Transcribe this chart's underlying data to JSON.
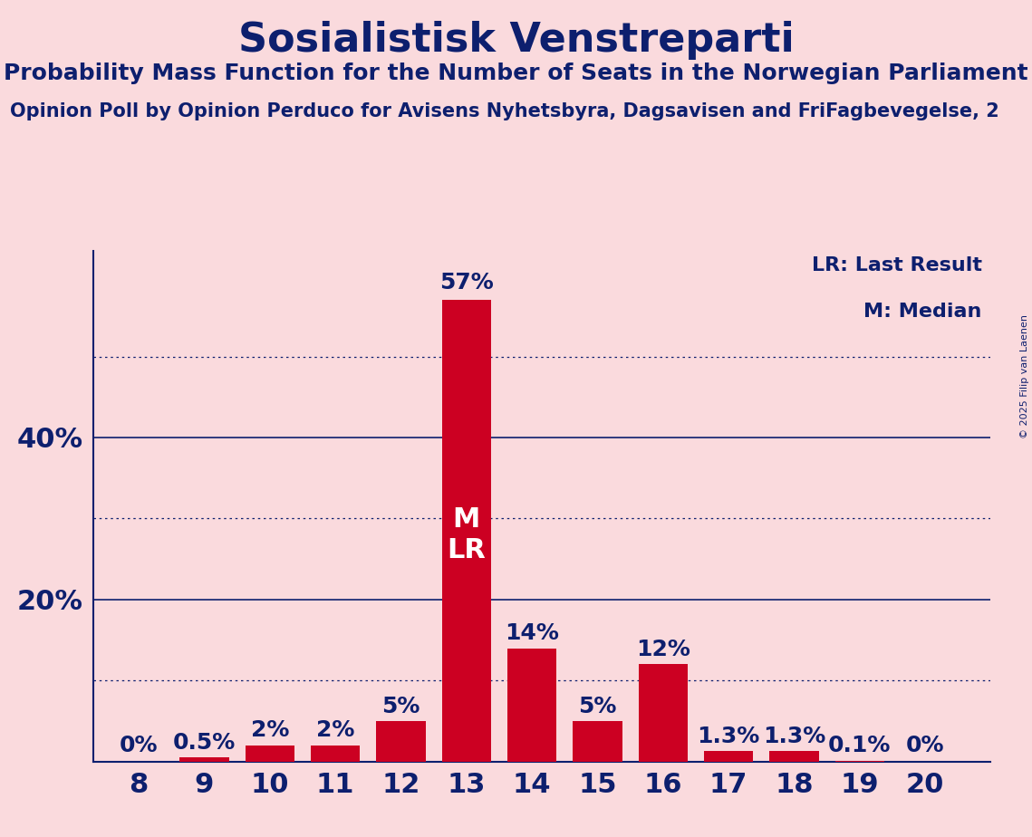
{
  "title": "Sosialistisk Venstreparti",
  "subtitle": "Probability Mass Function for the Number of Seats in the Norwegian Parliament",
  "source": "Opinion Poll by Opinion Perduco for Avisens Nyhetsbyra, Dagsavisen and FriFagbevegelse, 2",
  "copyright": "© 2025 Filip van Laenen",
  "seats": [
    8,
    9,
    10,
    11,
    12,
    13,
    14,
    15,
    16,
    17,
    18,
    19,
    20
  ],
  "probabilities": [
    0.0,
    0.5,
    2.0,
    2.0,
    5.0,
    57.0,
    14.0,
    5.0,
    12.0,
    1.3,
    1.3,
    0.1,
    0.0
  ],
  "labels": [
    "0%",
    "0.5%",
    "2%",
    "2%",
    "5%",
    "57%",
    "14%",
    "5%",
    "12%",
    "1.3%",
    "1.3%",
    "0.1%",
    "0%"
  ],
  "median_seat": 13,
  "last_result_seat": 13,
  "bar_color": "#CC0022",
  "background_color": "#FADADD",
  "text_color": "#0D1F6E",
  "title_fontsize": 32,
  "subtitle_fontsize": 18,
  "source_fontsize": 15,
  "dotted_lines": [
    10,
    30,
    50
  ],
  "solid_lines": [
    20,
    40
  ],
  "legend_lr": "LR: Last Result",
  "legend_m": "M: Median",
  "legend_fontsize": 16,
  "annotation_fontsize": 18,
  "xlabel_fontsize": 22,
  "ytick_fontsize": 22,
  "mlr_fontsize": 22,
  "ylim_max": 63,
  "xlim_min": 7.3,
  "xlim_max": 21.0
}
